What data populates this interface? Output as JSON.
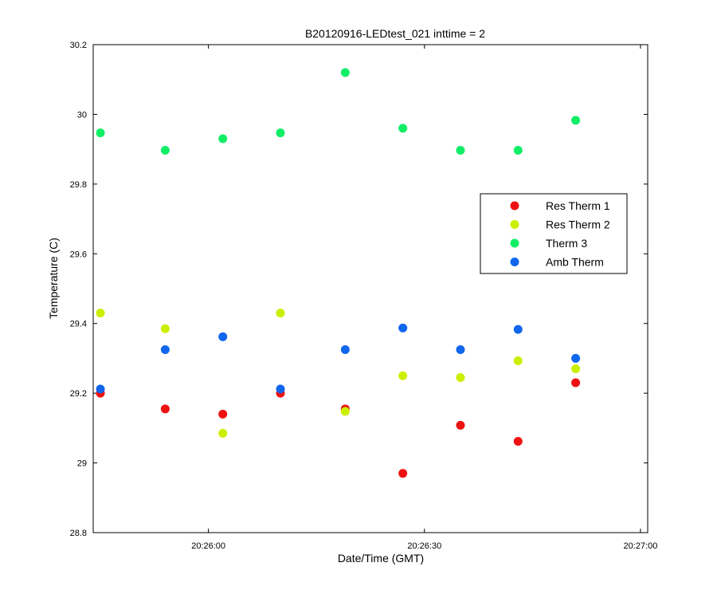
{
  "chart_data": {
    "type": "scatter",
    "title": "B20120916-LEDtest_021 inttime = 2",
    "xlabel": "Date/Time (GMT)",
    "ylabel": "Temperature (C)",
    "x_axis": {
      "kind": "time",
      "range": [
        "20:25:44",
        "20:27:01"
      ],
      "ticks": [
        "20:26:00",
        "20:26:30",
        "20:27:00"
      ]
    },
    "y_axis": {
      "range": [
        28.8,
        30.2
      ],
      "ticks": [
        "28.8",
        "29",
        "29.2",
        "29.4",
        "29.6",
        "29.8",
        "30",
        "30.2"
      ]
    },
    "grid": false,
    "legend_position": "right",
    "x": [
      "20:25:45",
      "20:25:54",
      "20:26:02",
      "20:26:10",
      "20:26:19",
      "20:26:27",
      "20:26:35",
      "20:26:43",
      "20:26:51"
    ],
    "series": [
      {
        "name": "Res Therm 1",
        "color": "#ee1111",
        "values": [
          29.2,
          29.155,
          29.14,
          29.2,
          29.155,
          28.97,
          29.108,
          29.062,
          29.23
        ]
      },
      {
        "name": "Res Therm 2",
        "color": "#ccee00",
        "values": [
          29.43,
          29.385,
          29.085,
          29.43,
          29.148,
          29.25,
          29.245,
          29.293,
          29.27
        ]
      },
      {
        "name": "Therm 3",
        "color": "#11ee66",
        "values": [
          29.947,
          29.897,
          29.93,
          29.947,
          30.12,
          29.96,
          29.897,
          29.897,
          29.983
        ]
      },
      {
        "name": "Amb Therm",
        "color": "#1166ee",
        "values": [
          29.212,
          29.325,
          29.362,
          29.212,
          29.325,
          29.387,
          29.325,
          29.383,
          29.3
        ]
      }
    ]
  }
}
